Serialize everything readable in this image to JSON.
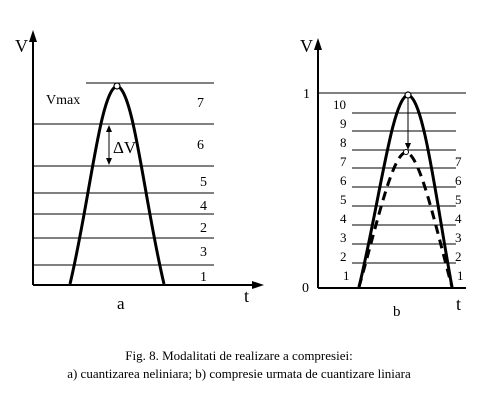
{
  "panel_a": {
    "axis_y": "V",
    "axis_x": "t",
    "vmax_label": "Vmax",
    "delta_label": "ΔV",
    "panel_label": "a",
    "levels": [
      "1",
      "3",
      "2",
      "4",
      "5",
      "6",
      "7"
    ]
  },
  "panel_b": {
    "axis_y": "V",
    "axis_x": "t",
    "origin_label": "0",
    "top_label": "1",
    "panel_label": "b",
    "left_levels": [
      "1",
      "2",
      "3",
      "4",
      "5",
      "6",
      "7",
      "8",
      "9",
      "10"
    ],
    "right_levels": [
      "1",
      "2",
      "3",
      "4",
      "5",
      "6",
      "7"
    ]
  },
  "caption": {
    "line1": "Fig. 8. Modalitati de realizare a compresiei:",
    "line2": "a) cuantizarea neliniara; b) compresie urmata de cuantizare liniara"
  }
}
